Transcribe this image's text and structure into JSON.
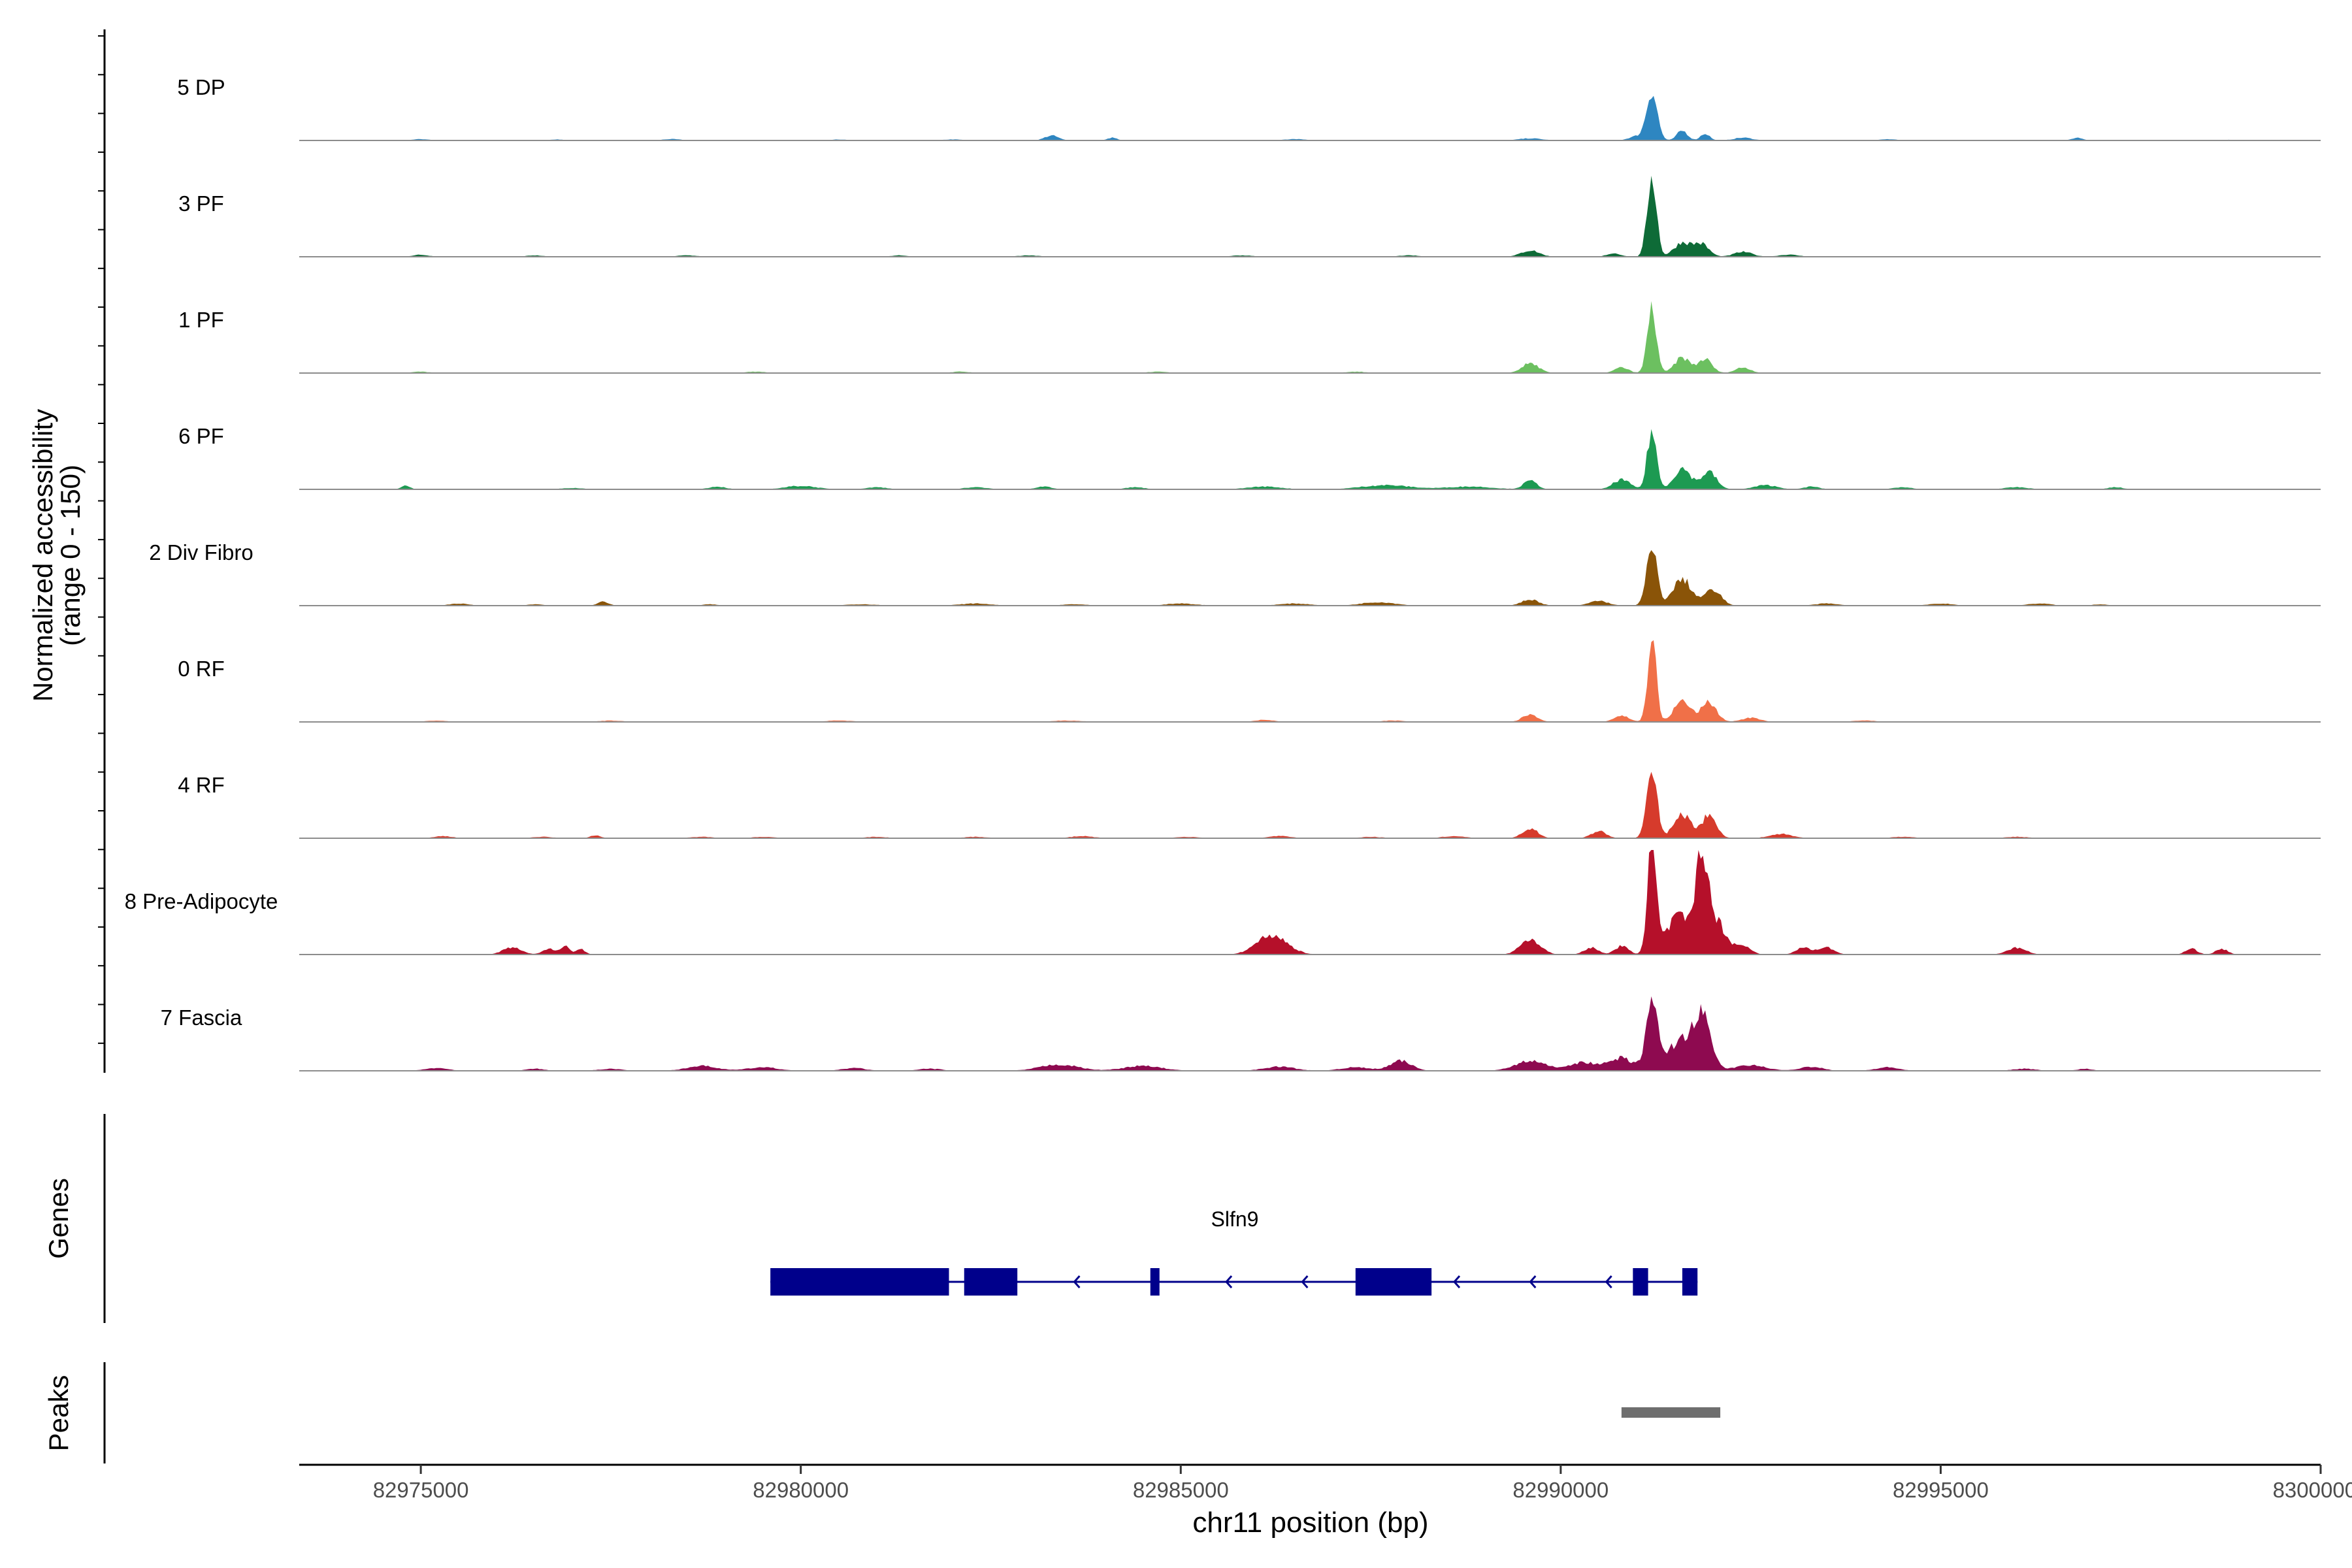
{
  "chart_data": {
    "type": "area",
    "title": "",
    "ylabel_line1": "Normalized accessibility",
    "ylabel_line2": "(range 0 - 150)",
    "xlabel": "chr11 position (bp)",
    "xlim": [
      82973400,
      83000000
    ],
    "ylim": [
      0,
      150
    ],
    "x_ticks": [
      82975000,
      82980000,
      82985000,
      82990000,
      82995000,
      83000000
    ],
    "x_tick_labels": [
      "82975000",
      "82980000",
      "82985000",
      "82990000",
      "82995000",
      "83000000"
    ],
    "series": [
      {
        "name": "5 DP",
        "color": "#2e86c1",
        "peaks": [
          [
            82975000,
            2,
            110
          ],
          [
            82976800,
            1.5,
            90
          ],
          [
            82978300,
            2,
            120
          ],
          [
            82980500,
            1.5,
            100
          ],
          [
            82982000,
            1.5,
            120
          ],
          [
            82983300,
            7,
            90
          ],
          [
            82984100,
            4,
            60
          ],
          [
            82986500,
            2,
            150
          ],
          [
            82989600,
            3,
            150
          ],
          [
            82991000,
            6,
            100
          ],
          [
            82991200,
            70,
            70
          ],
          [
            82991600,
            14,
            70
          ],
          [
            82991900,
            10,
            60
          ],
          [
            82992400,
            4,
            120
          ],
          [
            82994300,
            2,
            120
          ],
          [
            82996800,
            4,
            70
          ],
          [
            82998800,
            1,
            90
          ]
        ]
      },
      {
        "name": "3 PF",
        "color": "#0e6b37",
        "peaks": [
          [
            82975000,
            3,
            100
          ],
          [
            82976500,
            2,
            110
          ],
          [
            82978500,
            2,
            130
          ],
          [
            82981300,
            2,
            110
          ],
          [
            82983000,
            2,
            150
          ],
          [
            82985800,
            2,
            140
          ],
          [
            82988000,
            2,
            130
          ],
          [
            82989600,
            9,
            120
          ],
          [
            82990700,
            5,
            90
          ],
          [
            82991200,
            118,
            60
          ],
          [
            82991600,
            20,
            110
          ],
          [
            82991850,
            18,
            100
          ],
          [
            82992400,
            7,
            120
          ],
          [
            82993000,
            3,
            130
          ]
        ]
      },
      {
        "name": "1 PF",
        "color": "#6cc060",
        "peaks": [
          [
            82975000,
            2,
            110
          ],
          [
            82979400,
            2,
            130
          ],
          [
            82982100,
            2,
            120
          ],
          [
            82984700,
            2,
            130
          ],
          [
            82987300,
            2,
            130
          ],
          [
            82989600,
            14,
            110
          ],
          [
            82990800,
            8,
            90
          ],
          [
            82991200,
            92,
            60
          ],
          [
            82991600,
            22,
            100
          ],
          [
            82991900,
            20,
            90
          ],
          [
            82992400,
            8,
            100
          ]
        ]
      },
      {
        "name": "6 PF",
        "color": "#1d9a52",
        "peaks": [
          [
            82974800,
            5,
            60
          ],
          [
            82977000,
            2,
            140
          ],
          [
            82978900,
            4,
            110
          ],
          [
            82980000,
            5,
            200
          ],
          [
            82981000,
            3,
            140
          ],
          [
            82982300,
            3,
            150
          ],
          [
            82983200,
            4,
            100
          ],
          [
            82984400,
            3,
            130
          ],
          [
            82986100,
            4,
            220
          ],
          [
            82987700,
            6,
            320
          ],
          [
            82988800,
            4,
            300
          ],
          [
            82989600,
            12,
            90
          ],
          [
            82990800,
            14,
            110
          ],
          [
            82991200,
            85,
            60
          ],
          [
            82991600,
            30,
            110
          ],
          [
            82991950,
            25,
            100
          ],
          [
            82992700,
            6,
            150
          ],
          [
            82993300,
            4,
            100
          ],
          [
            82994500,
            3,
            120
          ],
          [
            82996000,
            3,
            150
          ],
          [
            82997300,
            3,
            100
          ]
        ]
      },
      {
        "name": "2 Div Fibro",
        "color": "#8a5408",
        "peaks": [
          [
            82975500,
            3,
            130
          ],
          [
            82976500,
            2,
            100
          ],
          [
            82977400,
            6,
            70
          ],
          [
            82978800,
            2,
            100
          ],
          [
            82980800,
            2,
            200
          ],
          [
            82982300,
            3,
            200
          ],
          [
            82983600,
            2,
            160
          ],
          [
            82985000,
            3,
            200
          ],
          [
            82986500,
            3,
            200
          ],
          [
            82987600,
            5,
            220
          ],
          [
            82989600,
            9,
            110
          ],
          [
            82990500,
            7,
            120
          ],
          [
            82991200,
            80,
            70
          ],
          [
            82991600,
            38,
            120
          ],
          [
            82992000,
            22,
            110
          ],
          [
            82993500,
            3,
            150
          ],
          [
            82995000,
            3,
            150
          ],
          [
            82996300,
            3,
            150
          ],
          [
            82997100,
            2,
            100
          ]
        ]
      },
      {
        "name": "0 RF",
        "color": "#f07048",
        "peaks": [
          [
            82975200,
            2,
            130
          ],
          [
            82977500,
            2,
            150
          ],
          [
            82980500,
            2,
            180
          ],
          [
            82983500,
            2,
            200
          ],
          [
            82986100,
            3,
            120
          ],
          [
            82987800,
            2,
            150
          ],
          [
            82989600,
            11,
            100
          ],
          [
            82990800,
            9,
            100
          ],
          [
            82991200,
            125,
            55
          ],
          [
            82991600,
            30,
            110
          ],
          [
            82991950,
            28,
            100
          ],
          [
            82992500,
            6,
            120
          ],
          [
            82994000,
            2,
            150
          ]
        ]
      },
      {
        "name": "4 RF",
        "color": "#d63b2c",
        "peaks": [
          [
            82975300,
            3,
            120
          ],
          [
            82976600,
            2,
            130
          ],
          [
            82977300,
            4,
            70
          ],
          [
            82978700,
            2,
            150
          ],
          [
            82979500,
            2,
            150
          ],
          [
            82981000,
            2,
            150
          ],
          [
            82982300,
            2,
            150
          ],
          [
            82983700,
            3,
            150
          ],
          [
            82985100,
            2,
            150
          ],
          [
            82986300,
            3,
            150
          ],
          [
            82987500,
            2,
            150
          ],
          [
            82988600,
            3,
            150
          ],
          [
            82989600,
            14,
            100
          ],
          [
            82990500,
            10,
            100
          ],
          [
            82991200,
            90,
            70
          ],
          [
            82991600,
            35,
            110
          ],
          [
            82991950,
            32,
            100
          ],
          [
            82992900,
            6,
            150
          ],
          [
            82994500,
            2,
            150
          ],
          [
            82996000,
            2,
            150
          ]
        ]
      },
      {
        "name": "8 Pre-Adipocyte",
        "color": "#b5102a",
        "peaks": [
          [
            82976200,
            10,
            120
          ],
          [
            82976700,
            8,
            90
          ],
          [
            82976900,
            14,
            50
          ],
          [
            82977100,
            8,
            60
          ],
          [
            82986200,
            28,
            200
          ],
          [
            82989600,
            22,
            130
          ],
          [
            82990400,
            10,
            90
          ],
          [
            82990800,
            12,
            90
          ],
          [
            82991200,
            150,
            60
          ],
          [
            82991550,
            55,
            150
          ],
          [
            82991850,
            126,
            70
          ],
          [
            82992000,
            55,
            150
          ],
          [
            82992400,
            12,
            100
          ],
          [
            82993200,
            10,
            100
          ],
          [
            82993500,
            10,
            100
          ],
          [
            82996000,
            10,
            120
          ],
          [
            82998300,
            8,
            80
          ],
          [
            82998700,
            8,
            80
          ]
        ]
      },
      {
        "name": "7 Fascia",
        "color": "#8e0a50",
        "peaks": [
          [
            82975200,
            4,
            150
          ],
          [
            82976500,
            3,
            120
          ],
          [
            82977500,
            3,
            150
          ],
          [
            82978700,
            7,
            200
          ],
          [
            82979500,
            5,
            200
          ],
          [
            82980700,
            4,
            150
          ],
          [
            82981700,
            3,
            150
          ],
          [
            82983400,
            9,
            250
          ],
          [
            82984500,
            7,
            250
          ],
          [
            82986300,
            6,
            200
          ],
          [
            82987300,
            5,
            200
          ],
          [
            82987900,
            14,
            140
          ],
          [
            82989600,
            14,
            200
          ],
          [
            82990300,
            12,
            200
          ],
          [
            82990800,
            18,
            150
          ],
          [
            82991200,
            90,
            80
          ],
          [
            82991550,
            40,
            150
          ],
          [
            82991850,
            78,
            120
          ],
          [
            82992500,
            8,
            200
          ],
          [
            82993300,
            6,
            150
          ],
          [
            82994300,
            5,
            150
          ],
          [
            82996100,
            3,
            150
          ],
          [
            82996900,
            3,
            100
          ]
        ]
      }
    ],
    "genes_label": "Genes",
    "gene": {
      "name": "Slfn9",
      "strand": "-",
      "start": 82979600,
      "end": 82991800,
      "exons": [
        [
          82979600,
          82981950
        ],
        [
          82982150,
          82982850
        ],
        [
          82984600,
          82984700
        ],
        [
          82987300,
          82988300
        ],
        [
          82990950,
          82991150
        ],
        [
          82991600,
          82991800
        ]
      ],
      "color": "#00008b"
    },
    "peaks_label": "Peaks",
    "peaks": [
      [
        82990800,
        82992100
      ]
    ],
    "peaks_color": "#6e6e6e"
  }
}
